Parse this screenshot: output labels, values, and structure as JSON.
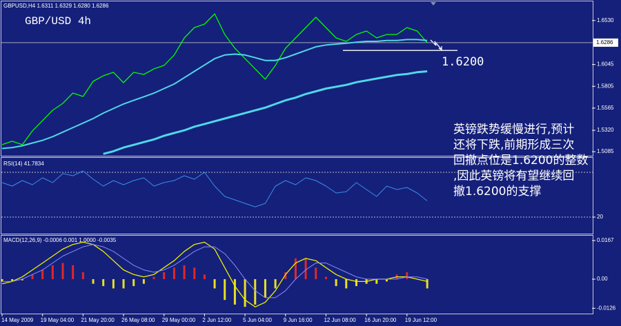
{
  "chart_data": [
    {
      "type": "line",
      "title": "GBP/USD 4h",
      "subtitle": "GBPUSD,H4  1.6311 1.6329 1.6280 1.6286",
      "ylim": [
        1.5055,
        1.6733
      ],
      "yticks": [
        {
          "value": 1.5085,
          "label": "1.5085"
        },
        {
          "value": 1.532,
          "label": "1.5320"
        },
        1.5565,
        1.5805,
        1.6045,
        {
          "value": 1.653,
          "label": "1.6530"
        }
      ],
      "current": 1.6286,
      "annotations": [
        {
          "value": 1.62,
          "label": "1.6200"
        }
      ],
      "text": [
        "英镑跌势缓慢进行,预计",
        "还将下跌,前期形成三次",
        "回撤点位是1.6200的整数",
        ",因此英镑将有望继续回",
        "撤1.6200的支撑"
      ],
      "series": [
        {
          "color": "#00ff00",
          "width": 1.3,
          "values": [
            1.5162,
            1.52,
            1.5162,
            1.5314,
            1.5428,
            1.5541,
            1.5617,
            1.5731,
            1.5693,
            1.586,
            1.5921,
            1.5959,
            1.5845,
            1.5959,
            1.5936,
            1.5997,
            1.6035,
            1.6149,
            1.6338,
            1.6452,
            1.649,
            1.6604,
            1.6376,
            1.6224,
            1.6111,
            1.5997,
            1.5883,
            1.6035,
            1.6224,
            1.6338,
            1.6452,
            1.6566,
            1.6452,
            1.6338,
            1.63,
            1.6376,
            1.6414,
            1.6338,
            1.6376,
            1.6376,
            1.6452,
            1.6414,
            1.6286
          ]
        },
        {
          "color": "#4fd8e8",
          "width": 2,
          "values": [
            1.512,
            1.513,
            1.515,
            1.518,
            1.521,
            1.525,
            1.53,
            1.535,
            1.54,
            1.545,
            1.551,
            1.556,
            1.561,
            1.565,
            1.569,
            1.573,
            1.578,
            1.583,
            1.59,
            1.597,
            1.604,
            1.611,
            1.615,
            1.616,
            1.615,
            1.612,
            1.609,
            1.609,
            1.612,
            1.616,
            1.62,
            1.624,
            1.626,
            1.627,
            1.628,
            1.629,
            1.63,
            1.63,
            1.631,
            1.631,
            1.632,
            1.632,
            1.631
          ]
        },
        {
          "color": "#4fd8e8",
          "width": 3,
          "values": [
            null,
            null,
            null,
            null,
            null,
            null,
            null,
            null,
            null,
            null,
            1.506,
            1.509,
            1.513,
            1.516,
            1.519,
            1.522,
            1.526,
            1.529,
            1.532,
            1.536,
            1.539,
            1.542,
            1.545,
            1.548,
            1.551,
            1.554,
            1.557,
            1.561,
            1.565,
            1.568,
            1.572,
            1.575,
            1.578,
            1.58,
            1.582,
            1.585,
            1.587,
            1.589,
            1.591,
            1.593,
            1.594,
            1.596,
            1.597
          ]
        }
      ]
    },
    {
      "type": "line",
      "title": "RSI(14) 41.7834",
      "ylim": [
        -1.2,
        96.6
      ],
      "yticks": [
        20
      ],
      "grid": true,
      "levels": [
        80
      ],
      "series": [
        {
          "color": "#3a8ee6",
          "width": 1,
          "values": [
            66.2,
            61.5,
            68.9,
            63.4,
            72.6,
            66.2,
            78.2,
            75.4,
            81.8,
            70.8,
            61.5,
            68.9,
            63.4,
            68.9,
            72.6,
            61.5,
            66.2,
            68.9,
            75.4,
            70.8,
            80,
            61.5,
            47.7,
            43.1,
            38.4,
            33.8,
            38.4,
            61.5,
            68.9,
            63.4,
            72.6,
            68.9,
            61.5,
            52.3,
            54.1,
            66.2,
            56.9,
            47.7,
            61.5,
            56.9,
            59.7,
            52.3,
            41.78
          ]
        }
      ]
    },
    {
      "type": "macd",
      "title": "MACD(12,26,9) -0.0006 0.001 1.0000 -0.0035",
      "ylim": [
        -0.0149,
        0.0185
      ],
      "yticks": [
        {
          "value": 0.0167,
          "label": "0.0167"
        },
        {
          "value": 0,
          "label": "0.00"
        },
        {
          "value": -0.0126,
          "label": "-0.0126"
        }
      ],
      "categories": [
        "14 May 2009",
        null,
        null,
        null,
        "19 May 04:00",
        null,
        null,
        null,
        "21 May 20:00",
        null,
        null,
        null,
        "26 May 08:00",
        null,
        null,
        null,
        "29 May 00:00",
        null,
        null,
        null,
        "2 Jun 12:00",
        null,
        null,
        null,
        "5 Jun 04:00",
        null,
        null,
        null,
        "9 Jun 16:00",
        null,
        null,
        null,
        "12 Jun 08:00",
        null,
        null,
        null,
        "16 Jun 20:00",
        null,
        null,
        null,
        "19 Jun 12:00",
        null,
        null
      ],
      "series": [
        {
          "style": "histogram",
          "color": "#e02828",
          "negative_color": "#e8e020",
          "values": [
            -0.001,
            -0.001,
            -0.0005,
            0.002,
            0.004,
            0.006,
            0.007,
            0.006,
            0.003,
            -0.002,
            -0.003,
            -0.004,
            -0.004,
            -0.003,
            -0.002,
            0.001,
            0.003,
            0.005,
            0.006,
            0.005,
            0.002,
            -0.004,
            -0.009,
            -0.011,
            -0.012,
            -0.011,
            -0.008,
            -0.004,
            0.003,
            0.009,
            0.009,
            0.005,
            0.001,
            -0.003,
            -0.004,
            -0.003,
            -0.002,
            -0.002,
            -0.001,
            0.002,
            0.003,
            0,
            -0.004
          ]
        },
        {
          "color": "#f0f000",
          "width": 1.3,
          "values": [
            -0.002,
            -0.001,
            0.001,
            0.004,
            0.007,
            0.01,
            0.013,
            0.015,
            0.016,
            0.015,
            0.012,
            0.008,
            0.004,
            0.002,
            0.001,
            0.002,
            0.005,
            0.008,
            0.012,
            0.015,
            0.016,
            0.013,
            0.005,
            -0.003,
            -0.009,
            -0.012,
            -0.01,
            -0.005,
            0.002,
            0.007,
            0.009,
            0.008,
            0.005,
            0.002,
            0,
            -0.001,
            -0.001,
            0,
            0,
            0.001,
            0.001,
            0,
            -0.001
          ]
        },
        {
          "color": "#8a8cff",
          "width": 1,
          "values": [
            -0.001,
            -0.001,
            0,
            0.002,
            0.004,
            0.007,
            0.01,
            0.012,
            0.014,
            0.015,
            0.014,
            0.012,
            0.009,
            0.006,
            0.004,
            0.003,
            0.004,
            0.006,
            0.009,
            0.012,
            0.014,
            0.014,
            0.011,
            0.006,
            0,
            -0.005,
            -0.008,
            -0.008,
            -0.005,
            0,
            0.004,
            0.007,
            0.007,
            0.005,
            0.003,
            0.001,
            0,
            0,
            0,
            0,
            0.001,
            0.001,
            0
          ]
        }
      ]
    }
  ]
}
